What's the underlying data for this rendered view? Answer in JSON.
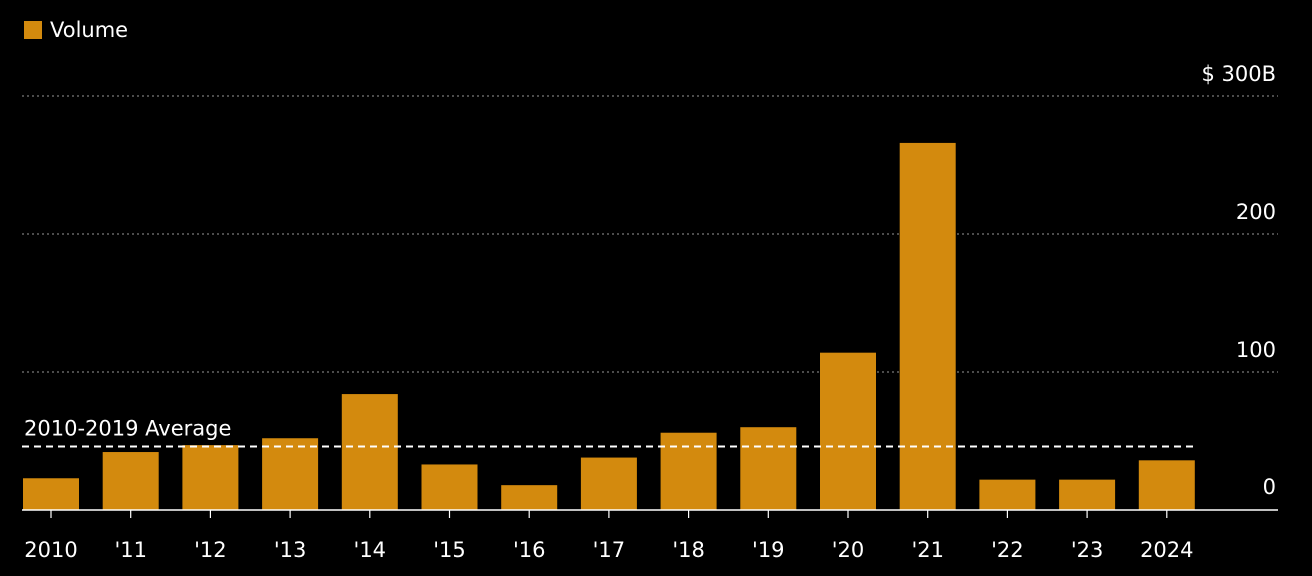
{
  "legend": {
    "label": "Volume"
  },
  "colors": {
    "bar": "#d38a0e",
    "background": "#000000",
    "text": "#ffffff",
    "grid": "#7a7a7a",
    "avg_line": "#ffffff"
  },
  "chart_data": {
    "type": "bar",
    "categories": [
      "2010",
      "'11",
      "'12",
      "'13",
      "'14",
      "'15",
      "'16",
      "'17",
      "'18",
      "'19",
      "'20",
      "'21",
      "'22",
      "'23",
      "2024"
    ],
    "series": [
      {
        "name": "Volume",
        "values": [
          23,
          42,
          47,
          52,
          84,
          33,
          18,
          38,
          56,
          60,
          114,
          266,
          22,
          22,
          36
        ]
      }
    ],
    "ylim": [
      0,
      300
    ],
    "yticks": [
      0,
      100,
      200,
      300
    ],
    "ytick_labels": [
      "0",
      "100",
      "200",
      "$ 300B"
    ],
    "y_axis_side": "right",
    "grid": true,
    "legend_position": "top-left",
    "reference_line": {
      "label": "2010-2019 Average",
      "value": 46
    }
  }
}
